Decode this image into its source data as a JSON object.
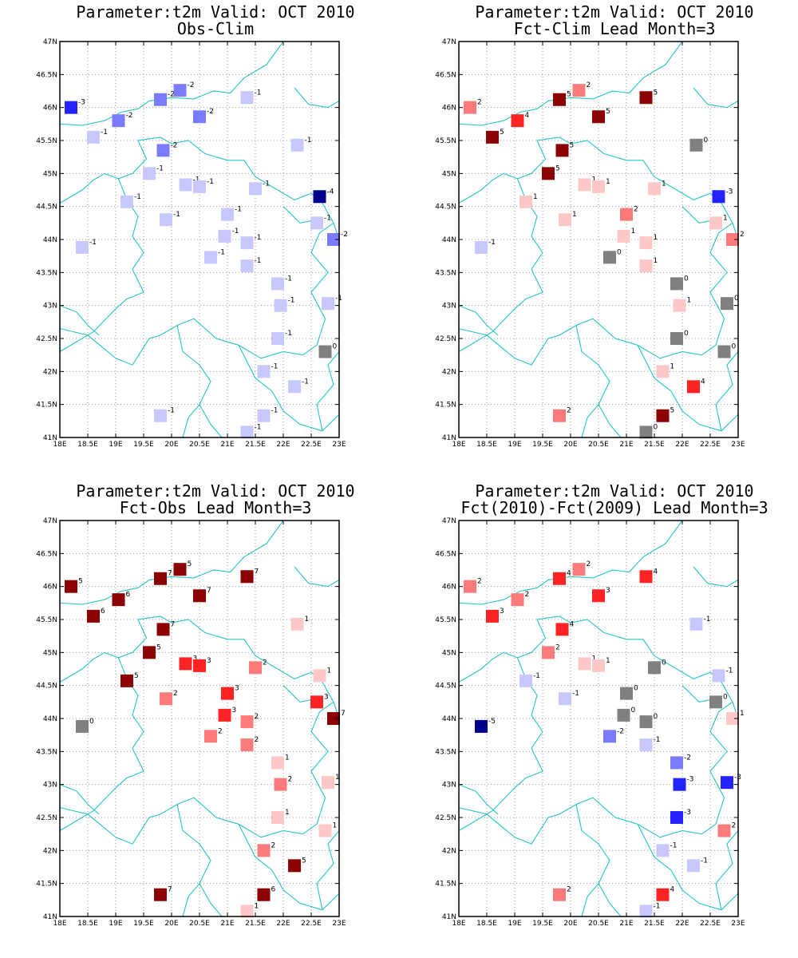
{
  "colors": {
    "coast": "#26c4c4",
    "grid": "#999999",
    "frame": "#000000",
    "scale": {
      "-5": "#00008b",
      "-4": "#00008b",
      "-3": "#2323ff",
      "-2": "#7b7bff",
      "-1": "#c8c8ff",
      "0": "#808080",
      "1": "#ffc8c8",
      "2": "#ff7b7b",
      "3": "#ff2323",
      "4": "#ff2323",
      "5": "#8b0000",
      "6": "#8b0000",
      "7": "#8b0000"
    }
  },
  "axes": {
    "lon": [
      {
        "v": 18,
        "t": "18E"
      },
      {
        "v": 18.5,
        "t": "18.5E"
      },
      {
        "v": 19,
        "t": "19E"
      },
      {
        "v": 19.5,
        "t": "19.5E"
      },
      {
        "v": 20,
        "t": "20E"
      },
      {
        "v": 20.5,
        "t": "20.5E"
      },
      {
        "v": 21,
        "t": "21E"
      },
      {
        "v": 21.5,
        "t": "21.5E"
      },
      {
        "v": 22,
        "t": "22E"
      },
      {
        "v": 22.5,
        "t": "22.5E"
      },
      {
        "v": 23,
        "t": "23E"
      }
    ],
    "lat": [
      {
        "v": 41,
        "t": "41N"
      },
      {
        "v": 41.5,
        "t": "41.5N"
      },
      {
        "v": 42,
        "t": "42N"
      },
      {
        "v": 42.5,
        "t": "42.5N"
      },
      {
        "v": 43,
        "t": "43N"
      },
      {
        "v": 43.5,
        "t": "43.5N"
      },
      {
        "v": 44,
        "t": "44N"
      },
      {
        "v": 44.5,
        "t": "44.5N"
      },
      {
        "v": 45,
        "t": "45N"
      },
      {
        "v": 45.5,
        "t": "45.5N"
      },
      {
        "v": 46,
        "t": "46N"
      },
      {
        "v": 46.5,
        "t": "46.5N"
      },
      {
        "v": 47,
        "t": "47N"
      }
    ],
    "lon_range": [
      18,
      23
    ],
    "lat_range": [
      41,
      47
    ]
  },
  "stations": [
    [
      18.2,
      46.0
    ],
    [
      18.6,
      45.55
    ],
    [
      19.05,
      45.8
    ],
    [
      19.8,
      46.12
    ],
    [
      20.15,
      46.26
    ],
    [
      20.5,
      45.86
    ],
    [
      21.35,
      46.15
    ],
    [
      22.25,
      45.43
    ],
    [
      19.85,
      45.35
    ],
    [
      19.6,
      45.0
    ],
    [
      20.25,
      44.83
    ],
    [
      20.5,
      44.8
    ],
    [
      21.5,
      44.77
    ],
    [
      22.65,
      44.65
    ],
    [
      19.2,
      44.57
    ],
    [
      19.9,
      44.3
    ],
    [
      21.0,
      44.38
    ],
    [
      20.95,
      44.05
    ],
    [
      18.4,
      43.88
    ],
    [
      20.7,
      43.73
    ],
    [
      21.35,
      43.95
    ],
    [
      22.6,
      44.25
    ],
    [
      22.9,
      44.0
    ],
    [
      21.35,
      43.6
    ],
    [
      21.9,
      43.33
    ],
    [
      21.95,
      43.0
    ],
    [
      22.8,
      43.03
    ],
    [
      21.9,
      42.5
    ],
    [
      22.75,
      42.3
    ],
    [
      21.65,
      42.0
    ],
    [
      22.2,
      41.77
    ],
    [
      19.8,
      41.33
    ],
    [
      21.65,
      41.33
    ],
    [
      21.35,
      41.08
    ]
  ],
  "chart_data": [
    {
      "type": "map",
      "title": "Parameter:t2m Valid: OCT 2010",
      "subtitle": "Obs-Clim",
      "values": [
        -3,
        -1,
        -2,
        -2,
        -2,
        -2,
        -1,
        -1,
        -2,
        -1,
        -1,
        -1,
        -1,
        -4,
        -1,
        -1,
        -1,
        -1,
        -1,
        -1,
        -1,
        -1,
        -2,
        -1,
        -1,
        -1,
        -1,
        -1,
        0,
        -1,
        -1,
        -1,
        -1,
        -1
      ]
    },
    {
      "type": "map",
      "title": "Parameter:t2m Valid: OCT 2010",
      "subtitle": "Fct-Clim Lead Month=3",
      "values": [
        2,
        5,
        4,
        5,
        2,
        5,
        5,
        0,
        5,
        5,
        1,
        1,
        1,
        -3,
        1,
        1,
        2,
        1,
        -1,
        0,
        1,
        1,
        2,
        1,
        0,
        1,
        0,
        0,
        0,
        1,
        4,
        2,
        5,
        0
      ]
    },
    {
      "type": "map",
      "title": "Parameter:t2m Valid: OCT 2010",
      "subtitle": "Fct-Obs Lead Month=3",
      "values": [
        5,
        6,
        6,
        7,
        5,
        7,
        7,
        1,
        7,
        5,
        3,
        3,
        2,
        1,
        5,
        2,
        3,
        3,
        0,
        2,
        2,
        3,
        7,
        2,
        1,
        2,
        1,
        1,
        1,
        2,
        5,
        7,
        6,
        1
      ]
    },
    {
      "type": "map",
      "title": "Parameter:t2m Valid: OCT 2010",
      "subtitle": "Fct(2010)-Fct(2009) Lead Month=3",
      "values": [
        2,
        3,
        2,
        4,
        2,
        3,
        4,
        -1,
        4,
        2,
        1,
        1,
        0,
        -1,
        -1,
        -1,
        0,
        0,
        -5,
        -2,
        0,
        0,
        1,
        -1,
        -2,
        -3,
        -3,
        -3,
        2,
        -1,
        -1,
        2,
        4,
        -1
      ]
    }
  ]
}
